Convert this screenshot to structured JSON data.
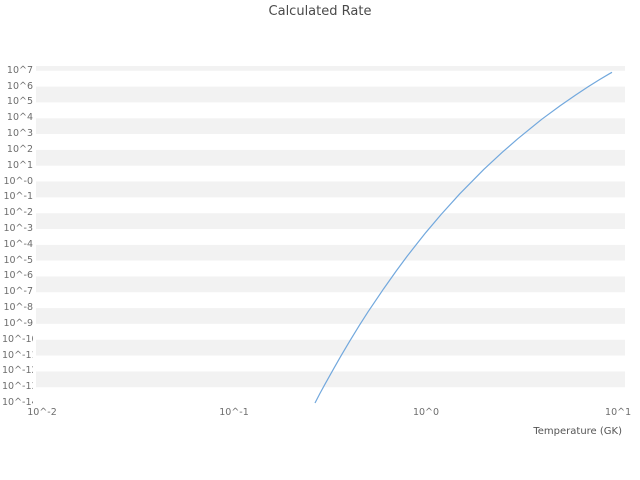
{
  "title": "Calculated Rate",
  "x_axis": {
    "label": "Temperature (GK)",
    "tick_values": [
      -2,
      -1,
      0,
      1
    ],
    "tick_labels": [
      "10^-2",
      "10^-1",
      "10^0",
      "10^1"
    ]
  },
  "y_axis": {
    "tick_values": [
      7,
      6,
      5,
      4,
      3,
      2,
      1,
      0,
      -1,
      -2,
      -3,
      -4,
      -5,
      -6,
      -7,
      -8,
      -9,
      -10,
      -11,
      -12,
      -13,
      -14
    ],
    "tick_labels": [
      "10^7",
      "10^6",
      "10^5",
      "10^4",
      "10^3",
      "10^2",
      "10^1",
      "10^-0",
      "10^-1",
      "10^-2",
      "10^-3",
      "10^-4",
      "10^-5",
      "10^-6",
      "10^-7",
      "10^-8",
      "10^-9",
      "10^-10",
      "10^-11",
      "10^-12",
      "10^-13",
      "10^-14"
    ]
  },
  "chart_data": {
    "type": "line",
    "title": "Calculated Rate",
    "xlabel": "Temperature (GK)",
    "ylabel": "",
    "x_scale": "log",
    "y_scale": "log",
    "xlim_log10": [
      -2.031,
      1.036
    ],
    "ylim_log10": [
      -14,
      7.3
    ],
    "grid": "horizontal-bands",
    "legend": "none",
    "line_color": "#72a8dd",
    "band_colors": [
      "#ffffff",
      "#f2f2f2"
    ],
    "series": [
      {
        "name": "calculated-rate",
        "x_GK": [
          0.264,
          0.28,
          0.3,
          0.33,
          0.36,
          0.4,
          0.45,
          0.5,
          0.6,
          0.7,
          0.8,
          0.9,
          1.0,
          1.2,
          1.5,
          2.0,
          2.5,
          3.0,
          4.0,
          5.0,
          6.0,
          7.0,
          8.0,
          9.0,
          9.3
        ],
        "log10_rate": [
          -14.0,
          -13.4,
          -12.74,
          -11.84,
          -11.04,
          -10.1,
          -9.09,
          -8.22,
          -6.8,
          -5.65,
          -4.7,
          -3.9,
          -3.21,
          -2.08,
          -0.77,
          0.77,
          1.86,
          2.7,
          3.93,
          4.8,
          5.46,
          6.0,
          6.44,
          6.81,
          6.9
        ]
      }
    ]
  }
}
